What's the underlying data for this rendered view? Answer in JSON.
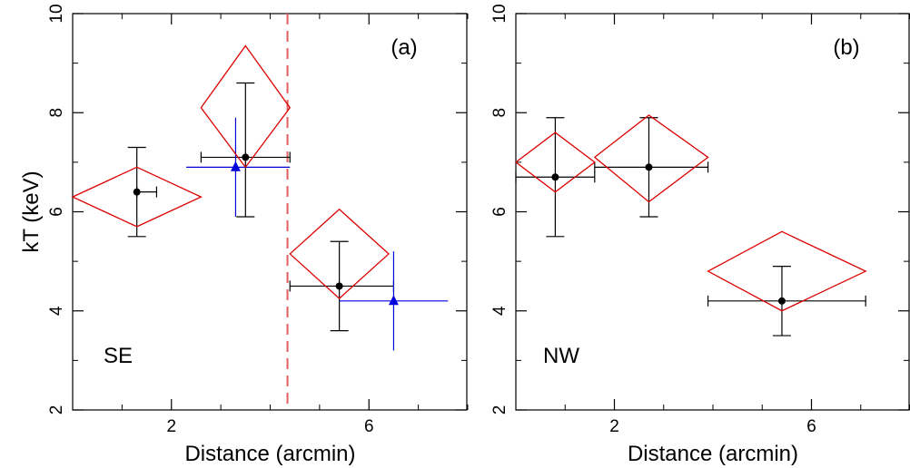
{
  "chart_data": [
    {
      "type": "scatter",
      "panel_label": "(a)",
      "region_label": "SE",
      "xlabel": "Distance (arcmin)",
      "ylabel": "kT (keV)",
      "xlim": [
        0.0,
        8.0
      ],
      "ylim": [
        2,
        10
      ],
      "x_ticks": [
        2,
        6
      ],
      "y_ticks": [
        2,
        4,
        6,
        8,
        10
      ],
      "grid": false,
      "vertical_line": {
        "x": 4.35,
        "style": "dashed",
        "color": "#e06060"
      },
      "series": [
        {
          "marker": "circle",
          "color": "#000000",
          "points": [
            {
              "x": 1.3,
              "xerr": [
                1.3,
                1.7
              ],
              "y": 6.4,
              "yerr": [
                5.5,
                7.3
              ]
            },
            {
              "x": 3.5,
              "xerr": [
                2.6,
                4.4
              ],
              "y": 7.1,
              "yerr": [
                5.9,
                8.6
              ]
            },
            {
              "x": 5.4,
              "xerr": [
                4.4,
                6.5
              ],
              "y": 4.5,
              "yerr": [
                3.6,
                5.4
              ]
            }
          ]
        },
        {
          "marker": "triangle",
          "color": "#0000dd",
          "points": [
            {
              "x": 3.3,
              "xerr": [
                2.3,
                4.4
              ],
              "y": 6.9,
              "yerr": [
                5.9,
                7.9
              ]
            },
            {
              "x": 6.5,
              "xerr": [
                5.4,
                7.6
              ],
              "y": 4.2,
              "yerr": [
                3.2,
                5.2
              ]
            }
          ]
        },
        {
          "marker": "diamond",
          "color": "#dd0000",
          "points": [
            {
              "x": 1.3,
              "xerr": [
                0.0,
                2.6
              ],
              "y": 6.3,
              "yerr": [
                5.7,
                6.9
              ]
            },
            {
              "x": 3.5,
              "xerr": [
                2.6,
                4.4
              ],
              "y": 8.1,
              "yerr": [
                6.9,
                9.35
              ]
            },
            {
              "x": 5.4,
              "xerr": [
                4.4,
                6.4
              ],
              "y": 5.15,
              "yerr": [
                4.25,
                6.05
              ]
            }
          ]
        }
      ]
    },
    {
      "type": "scatter",
      "panel_label": "(b)",
      "region_label": "NW",
      "xlabel": "Distance (arcmin)",
      "ylabel": "",
      "xlim": [
        0.0,
        8.0
      ],
      "ylim": [
        2,
        10
      ],
      "x_ticks": [
        2,
        6
      ],
      "y_ticks": [
        2,
        4,
        6,
        8,
        10
      ],
      "grid": false,
      "series": [
        {
          "marker": "circle",
          "color": "#000000",
          "points": [
            {
              "x": 0.8,
              "xerr": [
                0.0,
                1.6
              ],
              "y": 6.7,
              "yerr": [
                5.5,
                7.9
              ]
            },
            {
              "x": 2.7,
              "xerr": [
                1.6,
                3.9
              ],
              "y": 6.9,
              "yerr": [
                5.9,
                7.9
              ]
            },
            {
              "x": 5.4,
              "xerr": [
                3.9,
                7.1
              ],
              "y": 4.2,
              "yerr": [
                3.5,
                4.9
              ]
            }
          ]
        },
        {
          "marker": "diamond",
          "color": "#dd0000",
          "points": [
            {
              "x": 0.8,
              "xerr": [
                0.0,
                1.6
              ],
              "y": 7.0,
              "yerr": [
                6.4,
                7.6
              ]
            },
            {
              "x": 2.7,
              "xerr": [
                1.6,
                3.9
              ],
              "y": 7.1,
              "yerr": [
                6.2,
                7.95
              ]
            },
            {
              "x": 5.4,
              "xerr": [
                3.9,
                7.1
              ],
              "y": 4.8,
              "yerr": [
                4.0,
                5.6
              ]
            }
          ]
        }
      ]
    }
  ]
}
